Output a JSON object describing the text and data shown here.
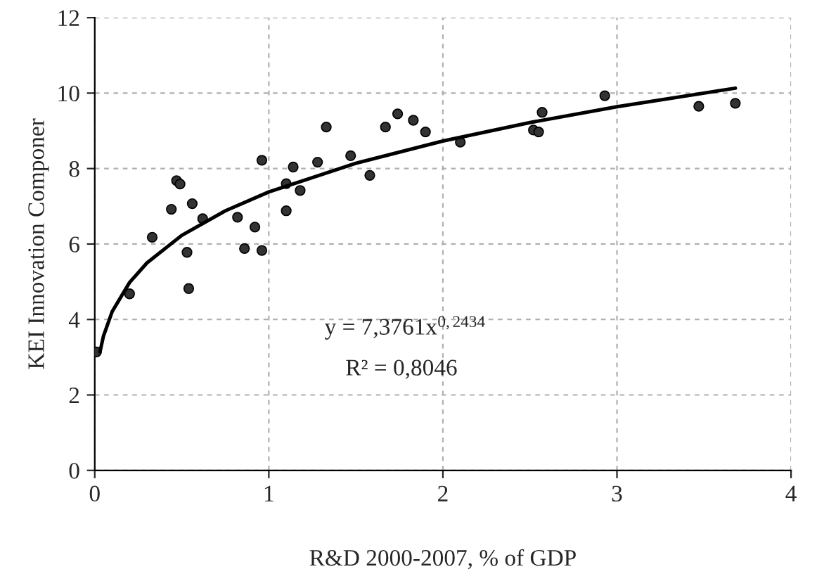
{
  "chart_data": {
    "type": "scatter",
    "xlabel": "R&D 2000-2007, % of GDP",
    "ylabel": "KEI Innovation Componer",
    "xlim": [
      0,
      4
    ],
    "xticks": [
      0,
      1,
      2,
      3,
      4
    ],
    "ylim": [
      0,
      12
    ],
    "yticks": [
      0,
      2,
      4,
      6,
      8,
      10,
      12
    ],
    "grid": true,
    "legend": false,
    "series": [
      {
        "marker": "circle",
        "color": "#333333",
        "x": [
          0.01,
          0.2,
          0.33,
          0.44,
          0.47,
          0.49,
          0.56,
          0.53,
          0.54,
          0.62,
          0.82,
          0.86,
          0.92,
          0.96,
          0.96,
          1.1,
          1.1,
          1.14,
          1.18,
          1.28,
          1.33,
          1.47,
          1.58,
          1.67,
          1.74,
          1.83,
          1.9,
          2.1,
          2.52,
          2.55,
          2.57,
          2.93,
          3.47,
          3.68
        ],
        "values": [
          3.14,
          4.68,
          6.18,
          6.92,
          7.68,
          7.59,
          7.07,
          5.78,
          4.82,
          6.67,
          6.71,
          5.88,
          6.45,
          5.83,
          8.22,
          6.88,
          7.6,
          8.04,
          7.42,
          8.17,
          9.1,
          8.34,
          7.82,
          9.1,
          9.45,
          9.28,
          8.97,
          8.7,
          9.02,
          8.97,
          9.49,
          9.93,
          9.65,
          9.73
        ]
      },
      {
        "type": "line",
        "marker": "none",
        "color": "#000000",
        "x": [
          0.03,
          0.05,
          0.1,
          0.2,
          0.3,
          0.5,
          0.75,
          1,
          1.5,
          2,
          2.5,
          3,
          3.68
        ],
        "values": [
          3.14,
          3.56,
          4.21,
          4.98,
          5.5,
          6.23,
          6.88,
          7.38,
          8.14,
          8.73,
          9.22,
          9.64,
          10.13
        ]
      }
    ],
    "annotations": [
      "y = 7,3761x$^{0,2434}$",
      "R² = 0,8046"
    ]
  }
}
